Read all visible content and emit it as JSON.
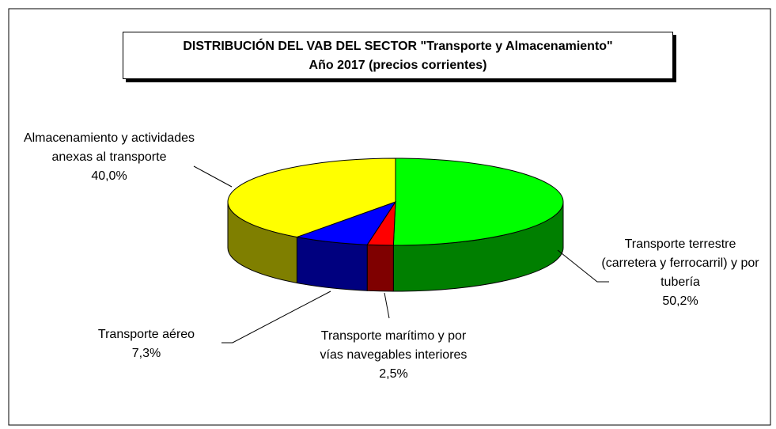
{
  "chart_data": {
    "type": "pie3d",
    "title": "DISTRIBUCIÓN DEL VAB DEL SECTOR \"Transporte y Almacenamiento\"",
    "subtitle": "Año 2017 (precios corrientes)",
    "categories": [
      "Transporte terrestre (carretera y ferrocarril) y por tubería",
      "Transporte marítimo y por vías navegables interiores",
      "Transporte aéreo",
      "Almacenamiento y actividades anexas al transporte"
    ],
    "values": [
      50.2,
      2.5,
      7.3,
      40.0
    ],
    "value_labels": [
      "50,2%",
      "2,5%",
      "7,3%",
      "40,0%"
    ],
    "colors": [
      "#00ff00",
      "#ff0000",
      "#0000ff",
      "#ffff00"
    ]
  }
}
